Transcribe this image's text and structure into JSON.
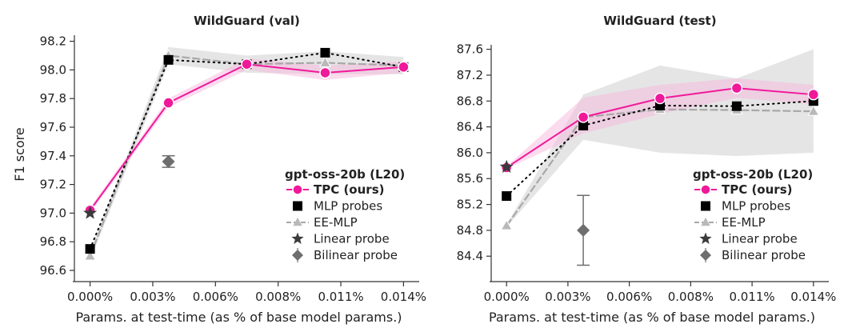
{
  "colors": {
    "tpc": "#f0199a",
    "mlp": "#000000",
    "ee": "#b9b9b9",
    "linear": "#3a3a3a",
    "bilinear": "#6e6e6e",
    "band": "#cfcfcf",
    "tpc_band": "#f7b8de"
  },
  "chart_data": [
    {
      "type": "line",
      "title": "WildGuard (val)",
      "xlabel": "Params. at test-time (as % of base model params.)",
      "ylabel": "F1 score",
      "x_ticks": [
        0.0,
        0.0028,
        0.0056,
        0.0084,
        0.0112,
        0.014
      ],
      "x_tick_labels": [
        "0.000%",
        "0.003%",
        "0.006%",
        "0.008%",
        "0.011%",
        "0.014%"
      ],
      "xlim": [
        -0.0007,
        0.0147
      ],
      "ylim": [
        96.6,
        98.22
      ],
      "y_ticks": [
        96.6,
        96.8,
        97.0,
        97.2,
        97.4,
        97.6,
        97.8,
        98.0,
        98.2
      ],
      "y_tick_labels": [
        "96.6",
        "96.8",
        "97.0",
        "97.2",
        "97.4",
        "97.6",
        "97.8",
        "98.0",
        "98.2"
      ],
      "legend_title": "gpt-oss-20b (L20)",
      "legend_position": "lower-right",
      "series": [
        {
          "key": "ee",
          "name": "EE-MLP",
          "x": [
            0.0,
            0.0035,
            0.007,
            0.0105,
            0.014
          ],
          "y": [
            96.7,
            98.1,
            98.04,
            98.05,
            98.03
          ],
          "band": [
            [
              96.67,
              96.73
            ],
            [
              98.04,
              98.16
            ],
            [
              97.98,
              98.1
            ],
            [
              97.97,
              98.13
            ],
            [
              97.97,
              98.09
            ]
          ]
        },
        {
          "key": "mlp",
          "name": "MLP probes",
          "x": [
            0.0,
            0.0035,
            0.007,
            0.0105,
            0.014
          ],
          "y": [
            96.75,
            98.07,
            98.04,
            98.12,
            98.02
          ]
        },
        {
          "key": "tpc",
          "name": "TPC",
          "name_suffix": "(ours)",
          "x": [
            0.0,
            0.0035,
            0.007,
            0.0105,
            0.014
          ],
          "y": [
            97.02,
            97.77,
            98.04,
            97.98,
            98.02
          ],
          "band": [
            [
              97.0,
              97.04
            ],
            [
              97.74,
              97.8
            ],
            [
              98.0,
              98.08
            ],
            [
              97.93,
              98.03
            ],
            [
              97.98,
              98.06
            ]
          ]
        },
        {
          "key": "linear",
          "name": "Linear probe",
          "x": [
            0.0
          ],
          "y": [
            97.0
          ]
        },
        {
          "key": "bilinear",
          "name": "Bilinear probe",
          "x": [
            0.0035
          ],
          "y": [
            97.36
          ],
          "err": [
            [
              97.32,
              97.4
            ]
          ]
        }
      ]
    },
    {
      "type": "line",
      "title": "WildGuard (test)",
      "xlabel": "Params. at test-time (as % of base model params.)",
      "ylabel": "",
      "x_ticks": [
        0.0,
        0.0028,
        0.0056,
        0.0084,
        0.0112,
        0.014
      ],
      "x_tick_labels": [
        "0.000%",
        "0.003%",
        "0.006%",
        "0.008%",
        "0.011%",
        "0.014%"
      ],
      "xlim": [
        -0.0007,
        0.0147
      ],
      "ylim": [
        84.18,
        87.62
      ],
      "y_ticks": [
        84.4,
        84.8,
        85.2,
        85.6,
        86.0,
        86.4,
        86.8,
        87.2,
        87.6
      ],
      "y_tick_labels": [
        "84.4",
        "84.8",
        "85.2",
        "85.6",
        "86.0",
        "86.4",
        "86.8",
        "87.2",
        "87.6"
      ],
      "legend_title": "gpt-oss-20b (L20)",
      "legend_position": "lower-right",
      "series": [
        {
          "key": "ee",
          "name": "EE-MLP",
          "x": [
            0.0,
            0.0035,
            0.007,
            0.0105,
            0.014
          ],
          "y": [
            84.87,
            86.55,
            86.67,
            86.66,
            86.64
          ],
          "band": [
            [
              84.85,
              84.89
            ],
            [
              86.2,
              86.9
            ],
            [
              86.0,
              87.35
            ],
            [
              85.95,
              87.15
            ],
            [
              86.0,
              87.6
            ]
          ]
        },
        {
          "key": "mlp",
          "name": "MLP probes",
          "x": [
            0.0,
            0.0035,
            0.007,
            0.0105,
            0.014
          ],
          "y": [
            85.33,
            86.42,
            86.73,
            86.72,
            86.8
          ]
        },
        {
          "key": "tpc",
          "name": "TPC",
          "name_suffix": "(ours)",
          "x": [
            0.0,
            0.0035,
            0.007,
            0.0105,
            0.014
          ],
          "y": [
            85.77,
            86.55,
            86.84,
            87.0,
            86.9
          ],
          "band": [
            [
              85.75,
              85.79
            ],
            [
              86.3,
              86.85
            ],
            [
              86.6,
              87.05
            ],
            [
              86.85,
              87.15
            ],
            [
              86.75,
              87.05
            ]
          ]
        },
        {
          "key": "linear",
          "name": "Linear probe",
          "x": [
            0.0
          ],
          "y": [
            85.78
          ]
        },
        {
          "key": "bilinear",
          "name": "Bilinear probe",
          "x": [
            0.0035
          ],
          "y": [
            84.8
          ],
          "err": [
            [
              84.26,
              85.34
            ]
          ]
        }
      ]
    }
  ]
}
